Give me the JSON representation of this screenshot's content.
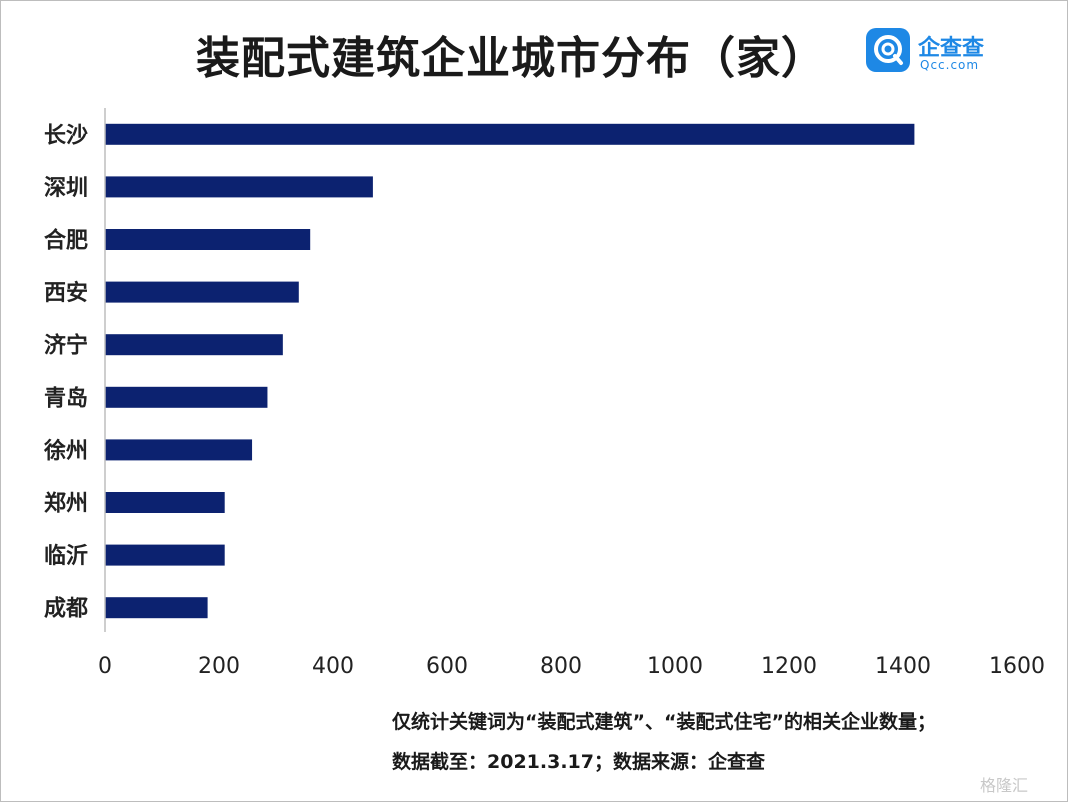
{
  "title": "装配式建筑企业城市分布（家）",
  "logo": {
    "cn": "企查查",
    "en": "Qcc.com",
    "icon": "qcc-logo-icon"
  },
  "notes": [
    "仅统计关键词为“装配式建筑”、“装配式住宅”的相关企业数量；",
    "数据截至：2021.3.17；数据来源：企查查"
  ],
  "watermark": "格隆汇",
  "colors": {
    "bar": "#0c2270",
    "axis": "#bdbdbd",
    "logo": "#1e88e5"
  },
  "chart_data": {
    "type": "bar",
    "orientation": "horizontal",
    "title": "装配式建筑企业城市分布（家）",
    "categories": [
      "长沙",
      "深圳",
      "合肥",
      "西安",
      "济宁",
      "青岛",
      "徐州",
      "郑州",
      "临沂",
      "成都"
    ],
    "values": [
      1420,
      470,
      360,
      340,
      312,
      285,
      258,
      210,
      210,
      180
    ],
    "xlim": [
      0,
      1600
    ],
    "xticks": [
      0,
      200,
      400,
      600,
      800,
      1000,
      1200,
      1400,
      1600
    ],
    "xlabel": "",
    "ylabel": "",
    "grid": false,
    "legend": "none"
  }
}
